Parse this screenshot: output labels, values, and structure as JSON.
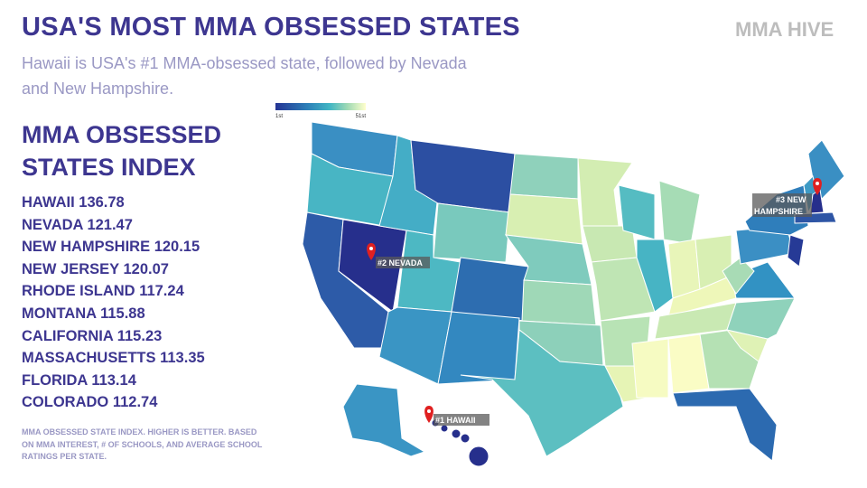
{
  "header": {
    "title": "USA'S MOST MMA OBSESSED STATES",
    "subtitle": "Hawaii is USA's #1 MMA-obsessed state, followed by Nevada and New Hampshire.",
    "logo": "MMA HIVE"
  },
  "index": {
    "heading": "MMA OBSESSED STATES INDEX",
    "rows": [
      {
        "state": "HAWAII",
        "score": 136.78
      },
      {
        "state": "NEVADA",
        "score": 121.47
      },
      {
        "state": "NEW HAMPSHIRE",
        "score": 120.15
      },
      {
        "state": "NEW JERSEY",
        "score": 120.07
      },
      {
        "state": "RHODE ISLAND",
        "score": 117.24
      },
      {
        "state": "MONTANA",
        "score": 115.88
      },
      {
        "state": "CALIFORNIA",
        "score": 115.23
      },
      {
        "state": "MASSACHUSETTS",
        "score": 113.35
      },
      {
        "state": "FLORIDA",
        "score": 113.14
      },
      {
        "state": "COLORADO",
        "score": 112.74
      }
    ],
    "note": "MMA OBSESSED STATE INDEX. HIGHER IS BETTER. BASED ON MMA INTEREST, # OF SCHOOLS, AND AVERAGE SCHOOL RATINGS PER STATE."
  },
  "map": {
    "legend": {
      "low": "1st",
      "high": "51st"
    },
    "pins": [
      {
        "label": "#1 HAWAII"
      },
      {
        "label": "#2 NEVADA"
      },
      {
        "label": "#3 NEW HAMPSHIRE"
      }
    ]
  }
}
